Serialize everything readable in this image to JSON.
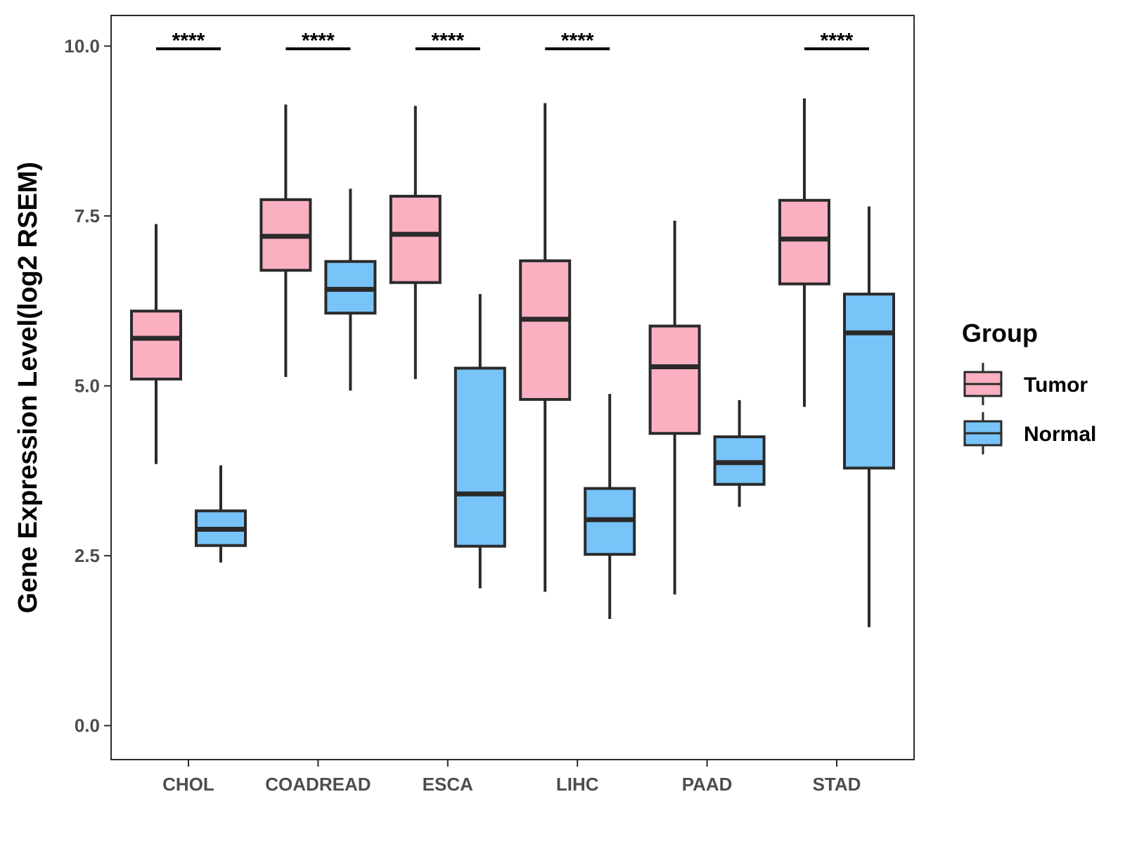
{
  "chart_data": {
    "type": "boxplot",
    "ylabel": "Gene Expression Level(log2 RSEM)",
    "xlabel": "",
    "ylim": [
      -0.5,
      10.45
    ],
    "yticks": [
      0.0,
      2.5,
      5.0,
      7.5,
      10.0
    ],
    "ytick_labels": [
      "0.0",
      "2.5",
      "5.0",
      "7.5",
      "10.0"
    ],
    "categories": [
      "CHOL",
      "COADREAD",
      "ESCA",
      "LIHC",
      "PAAD",
      "STAD"
    ],
    "colors": {
      "Tumor": "#fbb0c2",
      "Normal": "#78c3f8",
      "outline": "#2a2a2a"
    },
    "legend": {
      "title": "Group",
      "position": "right",
      "entries": [
        "Tumor",
        "Normal"
      ]
    },
    "series": [
      {
        "name": "Tumor",
        "boxes": [
          {
            "category": "CHOL",
            "whisker_low": 3.85,
            "q1": 5.1,
            "median": 5.7,
            "q3": 6.1,
            "whisker_high": 7.38
          },
          {
            "category": "COADREAD",
            "whisker_low": 5.13,
            "q1": 6.7,
            "median": 7.2,
            "q3": 7.74,
            "whisker_high": 9.14
          },
          {
            "category": "ESCA",
            "whisker_low": 5.1,
            "q1": 6.52,
            "median": 7.23,
            "q3": 7.79,
            "whisker_high": 9.12
          },
          {
            "category": "LIHC",
            "whisker_low": 1.97,
            "q1": 4.8,
            "median": 5.98,
            "q3": 6.84,
            "whisker_high": 9.16
          },
          {
            "category": "PAAD",
            "whisker_low": 1.93,
            "q1": 4.3,
            "median": 5.28,
            "q3": 5.88,
            "whisker_high": 7.43
          },
          {
            "category": "STAD",
            "whisker_low": 4.69,
            "q1": 6.5,
            "median": 7.16,
            "q3": 7.73,
            "whisker_high": 9.23
          }
        ]
      },
      {
        "name": "Normal",
        "boxes": [
          {
            "category": "CHOL",
            "whisker_low": 2.4,
            "q1": 2.65,
            "median": 2.89,
            "q3": 3.16,
            "whisker_high": 3.83
          },
          {
            "category": "COADREAD",
            "whisker_low": 4.93,
            "q1": 6.07,
            "median": 6.42,
            "q3": 6.83,
            "whisker_high": 7.9
          },
          {
            "category": "ESCA",
            "whisker_low": 2.02,
            "q1": 2.64,
            "median": 3.41,
            "q3": 5.26,
            "whisker_high": 6.35
          },
          {
            "category": "LIHC",
            "whisker_low": 1.57,
            "q1": 2.52,
            "median": 3.03,
            "q3": 3.49,
            "whisker_high": 4.88
          },
          {
            "category": "PAAD",
            "whisker_low": 3.22,
            "q1": 3.55,
            "median": 3.87,
            "q3": 4.25,
            "whisker_high": 4.79
          },
          {
            "category": "STAD",
            "whisker_low": 1.45,
            "q1": 3.79,
            "median": 5.78,
            "q3": 6.35,
            "whisker_high": 7.64
          }
        ]
      }
    ],
    "annotations": [
      {
        "category": "CHOL",
        "label": "****",
        "y": 9.96
      },
      {
        "category": "COADREAD",
        "label": "****",
        "y": 9.96
      },
      {
        "category": "ESCA",
        "label": "****",
        "y": 9.96
      },
      {
        "category": "LIHC",
        "label": "****",
        "y": 9.96
      },
      {
        "category": "STAD",
        "label": "****",
        "y": 9.96
      }
    ]
  }
}
